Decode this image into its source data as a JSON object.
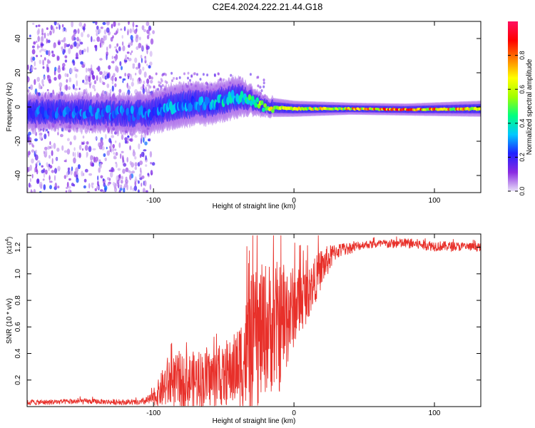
{
  "title": "C2E4.2024.222.21.44.G18",
  "chart_data": [
    {
      "type": "heatmap",
      "name": "spectrogram",
      "xlabel": "Height of straight line (km)",
      "ylabel": "Frequency (Hz)",
      "xlim": [
        -190,
        133
      ],
      "ylim": [
        -50,
        50
      ],
      "xticks": [
        -100,
        0,
        100
      ],
      "yticks": [
        -40,
        -20,
        0,
        20,
        40
      ],
      "xtick_labels": [
        "-100",
        "0",
        "100"
      ],
      "ytick_labels": [
        "-40",
        "-20",
        "0",
        "20",
        "40"
      ],
      "colorbar": {
        "label": "Normalized spectral amplitude",
        "range": [
          0,
          1
        ],
        "ticks": [
          0.0,
          0.2,
          0.4,
          0.6,
          0.8
        ],
        "tick_labels": [
          "0.0",
          "0.2",
          "0.4",
          "0.6",
          "0.8"
        ],
        "colors": [
          "#e8e0f8",
          "#8a2be2",
          "#2020ff",
          "#00c8ff",
          "#00ff80",
          "#a0ff00",
          "#ffff00",
          "#ff8000",
          "#ff0000",
          "#ff1060"
        ]
      },
      "ridge": [
        {
          "x": -190,
          "f": -3,
          "amp": 0.3,
          "width": 9
        },
        {
          "x": -150,
          "f": -3,
          "amp": 0.32,
          "width": 9
        },
        {
          "x": -105,
          "f": -4,
          "amp": 0.34,
          "width": 10
        },
        {
          "x": -85,
          "f": 1,
          "amp": 0.38,
          "width": 11
        },
        {
          "x": -60,
          "f": 2,
          "amp": 0.4,
          "width": 10
        },
        {
          "x": -40,
          "f": 6,
          "amp": 0.45,
          "width": 10
        },
        {
          "x": -30,
          "f": 4,
          "amp": 0.55,
          "width": 7
        },
        {
          "x": -20,
          "f": 0,
          "amp": 0.75,
          "width": 5
        },
        {
          "x": 0,
          "f": -1,
          "amp": 0.7,
          "width": 4
        },
        {
          "x": 40,
          "f": -1,
          "amp": 0.85,
          "width": 3
        },
        {
          "x": 80,
          "f": -1.5,
          "amp": 0.95,
          "width": 3
        },
        {
          "x": 133,
          "f": -1,
          "amp": 0.8,
          "width": 4
        }
      ]
    },
    {
      "type": "line",
      "name": "snr",
      "xlabel": "Height of straight line (km)",
      "ylabel": "SNR (10 * v/v)",
      "y_multiplier": "(x10",
      "y_multiplier_exp": "4",
      "y_multiplier_close": ")",
      "xlim": [
        -190,
        133
      ],
      "ylim": [
        0,
        1.3
      ],
      "xticks": [
        -100,
        0,
        100
      ],
      "xtick_labels": [
        "-100",
        "0",
        "100"
      ],
      "yticks": [
        0.2,
        0.4,
        0.6,
        0.8,
        1.0,
        1.2
      ],
      "ytick_labels": [
        "0.2",
        "0.4",
        "0.6",
        "0.8",
        "1.0",
        "1.2"
      ],
      "color": "#e8302a",
      "envelope": [
        {
          "x": -190,
          "base": 0.03,
          "amp": 0.02
        },
        {
          "x": -150,
          "base": 0.04,
          "amp": 0.02
        },
        {
          "x": -110,
          "base": 0.03,
          "amp": 0.02
        },
        {
          "x": -100,
          "base": 0.06,
          "amp": 0.05
        },
        {
          "x": -90,
          "base": 0.18,
          "amp": 0.2
        },
        {
          "x": -70,
          "base": 0.2,
          "amp": 0.22
        },
        {
          "x": -50,
          "base": 0.22,
          "amp": 0.22
        },
        {
          "x": -40,
          "base": 0.3,
          "amp": 0.3
        },
        {
          "x": -30,
          "base": 0.45,
          "amp": 0.55
        },
        {
          "x": -20,
          "base": 0.6,
          "amp": 0.5
        },
        {
          "x": -10,
          "base": 0.6,
          "amp": 0.5
        },
        {
          "x": 0,
          "base": 0.75,
          "amp": 0.3
        },
        {
          "x": 10,
          "base": 0.85,
          "amp": 0.2
        },
        {
          "x": 20,
          "base": 1.05,
          "amp": 0.15
        },
        {
          "x": 30,
          "base": 1.17,
          "amp": 0.06
        },
        {
          "x": 50,
          "base": 1.22,
          "amp": 0.03
        },
        {
          "x": 80,
          "base": 1.23,
          "amp": 0.04
        },
        {
          "x": 100,
          "base": 1.21,
          "amp": 0.04
        },
        {
          "x": 133,
          "base": 1.2,
          "amp": 0.03
        }
      ]
    }
  ]
}
